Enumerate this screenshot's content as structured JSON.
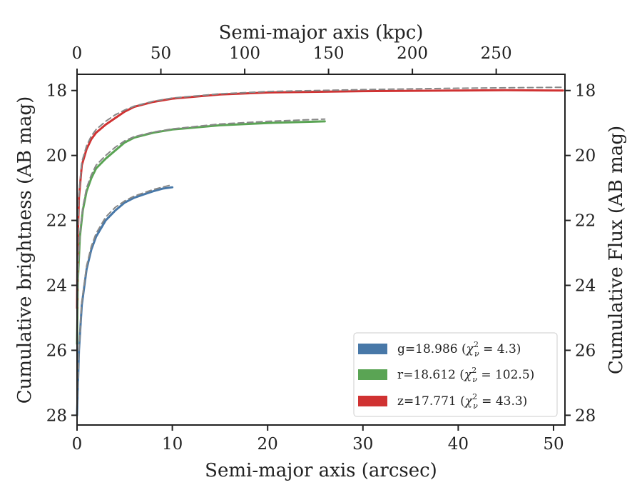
{
  "chart_data": {
    "type": "line",
    "title": "",
    "xlabel": "Semi-major axis (arcsec)",
    "ylabel": "Cumulative brightness (AB mag)",
    "x2label": "Semi-major axis (kpc)",
    "y2label": "Cumulative Flux (AB mag)",
    "xlim": [
      0,
      51.2
    ],
    "ylim": [
      28.3,
      17.5
    ],
    "x2lim": [
      0,
      291
    ],
    "y_inverted": true,
    "x_ticks": [
      "0",
      "10",
      "20",
      "30",
      "40",
      "50"
    ],
    "y_ticks": [
      "18",
      "20",
      "22",
      "24",
      "26",
      "28"
    ],
    "x2_ticks": [
      "0",
      "50",
      "100",
      "150",
      "200",
      "250"
    ],
    "y2_ticks": [
      "18",
      "20",
      "22",
      "24",
      "26",
      "28"
    ],
    "grid": false,
    "legend_position": "lower-right",
    "legend": [
      {
        "band": "g",
        "mag": "18.986",
        "chi2": "4.3",
        "color": "#4878a8"
      },
      {
        "band": "r",
        "mag": "18.612",
        "chi2": "102.5",
        "color": "#5aa454"
      },
      {
        "band": "z",
        "mag": "17.771",
        "chi2": "43.3",
        "color": "#d03232"
      }
    ],
    "series": [
      {
        "name": "g=18.986 (χ²ν = 4.3)",
        "color": "#4878a8",
        "x": [
          0,
          0.2,
          0.5,
          1,
          1.5,
          2,
          3,
          4,
          5,
          6,
          7,
          8,
          9,
          10
        ],
        "y": [
          28.0,
          26.0,
          24.6,
          23.5,
          22.9,
          22.5,
          22.0,
          21.7,
          21.45,
          21.3,
          21.2,
          21.1,
          21.02,
          20.98
        ]
      },
      {
        "name": "r=18.612 (χ²ν = 102.5)",
        "color": "#5aa454",
        "x": [
          0,
          0.1,
          0.3,
          0.6,
          1,
          1.5,
          2,
          3,
          4,
          5,
          6,
          8,
          10,
          15,
          20,
          26
        ],
        "y": [
          25.8,
          23.8,
          22.5,
          21.7,
          21.1,
          20.7,
          20.4,
          20.1,
          19.85,
          19.6,
          19.45,
          19.3,
          19.2,
          19.07,
          19.0,
          18.95
        ]
      },
      {
        "name": "z=17.771 (χ²ν = 43.3)",
        "color": "#d03232",
        "x": [
          0,
          0.05,
          0.2,
          0.5,
          1,
          1.5,
          2,
          3,
          4,
          5,
          6,
          8,
          10,
          15,
          20,
          30,
          40,
          45,
          51
        ],
        "y": [
          24.7,
          22.8,
          21.3,
          20.3,
          19.8,
          19.5,
          19.3,
          19.05,
          18.85,
          18.65,
          18.5,
          18.35,
          18.25,
          18.12,
          18.06,
          18.02,
          18.0,
          17.99,
          18.0
        ]
      },
      {
        "name": "g model",
        "style": "dashed",
        "color": "#888888",
        "x": [
          0,
          0.2,
          0.5,
          1,
          1.5,
          2,
          3,
          4,
          5,
          6,
          7,
          8,
          9,
          10
        ],
        "y": [
          28.0,
          26.0,
          24.5,
          23.4,
          22.8,
          22.4,
          21.9,
          21.6,
          21.4,
          21.25,
          21.15,
          21.05,
          20.97,
          20.9
        ]
      },
      {
        "name": "r model",
        "style": "dashed",
        "color": "#888888",
        "x": [
          0,
          0.1,
          0.3,
          0.6,
          1,
          1.5,
          2,
          3,
          4,
          5,
          6,
          8,
          10,
          15,
          20,
          26
        ],
        "y": [
          25.8,
          23.7,
          22.4,
          21.6,
          21.0,
          20.6,
          20.3,
          20.0,
          19.75,
          19.55,
          19.42,
          19.28,
          19.18,
          19.03,
          18.95,
          18.88
        ]
      },
      {
        "name": "z model",
        "style": "dashed",
        "color": "#888888",
        "x": [
          0,
          0.05,
          0.2,
          0.5,
          1,
          1.5,
          2,
          3,
          4,
          5,
          6,
          8,
          10,
          15,
          20,
          30,
          40,
          51
        ],
        "y": [
          24.7,
          22.7,
          21.2,
          20.2,
          19.7,
          19.4,
          19.2,
          18.95,
          18.75,
          18.6,
          18.48,
          18.33,
          18.23,
          18.1,
          18.03,
          17.97,
          17.93,
          17.9
        ]
      }
    ]
  }
}
